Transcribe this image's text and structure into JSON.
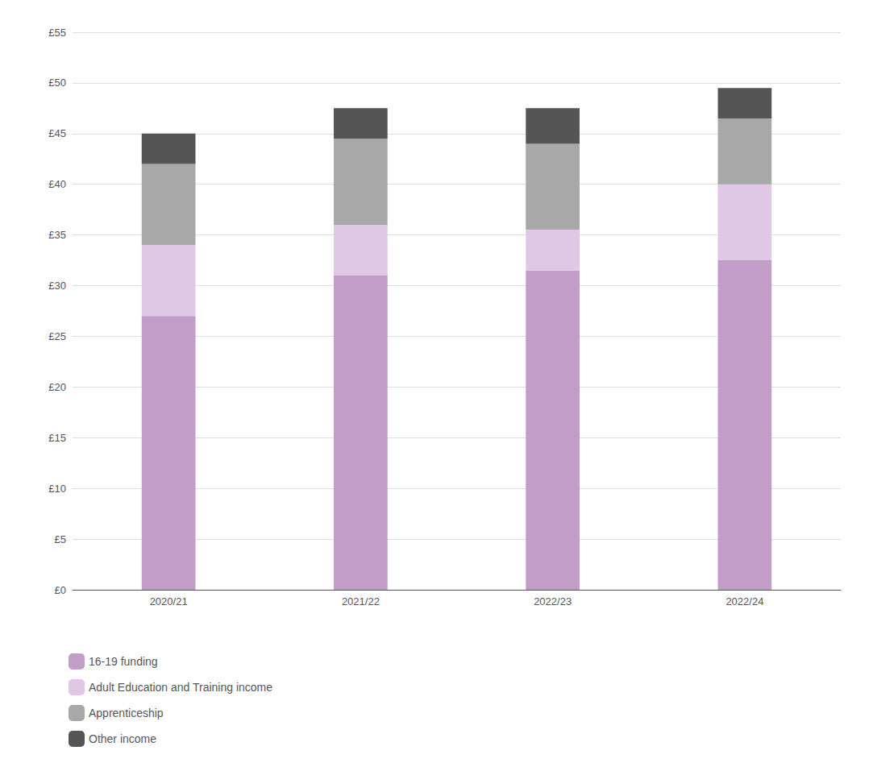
{
  "chart_data": {
    "type": "bar",
    "stacked": true,
    "categories": [
      "2020/21",
      "2021/22",
      "2022/23",
      "2022/24"
    ],
    "series": [
      {
        "name": "16-19 funding",
        "color": "#c29dc8",
        "values": [
          27.0,
          31.0,
          31.5,
          32.5
        ]
      },
      {
        "name": "Adult Education and Training income",
        "color": "#dfc8e5",
        "values": [
          7.0,
          5.0,
          4.0,
          7.5
        ]
      },
      {
        "name": "Apprenticeship",
        "color": "#a8a8a8",
        "values": [
          8.0,
          8.5,
          8.5,
          6.5
        ]
      },
      {
        "name": "Other income",
        "color": "#555555",
        "values": [
          3.0,
          3.0,
          3.5,
          3.0
        ]
      }
    ],
    "ylim": [
      0,
      55
    ],
    "yticks": [
      {
        "value": 0,
        "label": "£0"
      },
      {
        "value": 5,
        "label": "£5"
      },
      {
        "value": 10,
        "label": "£10"
      },
      {
        "value": 15,
        "label": "£15"
      },
      {
        "value": 20,
        "label": "£20"
      },
      {
        "value": 25,
        "label": "£25"
      },
      {
        "value": 30,
        "label": "£30"
      },
      {
        "value": 35,
        "label": "£35"
      },
      {
        "value": 40,
        "label": "£40"
      },
      {
        "value": 45,
        "label": "£45"
      },
      {
        "value": 50,
        "label": "£50"
      },
      {
        "value": 55,
        "label": "£55"
      }
    ],
    "grid": true,
    "legend": "lower left"
  }
}
